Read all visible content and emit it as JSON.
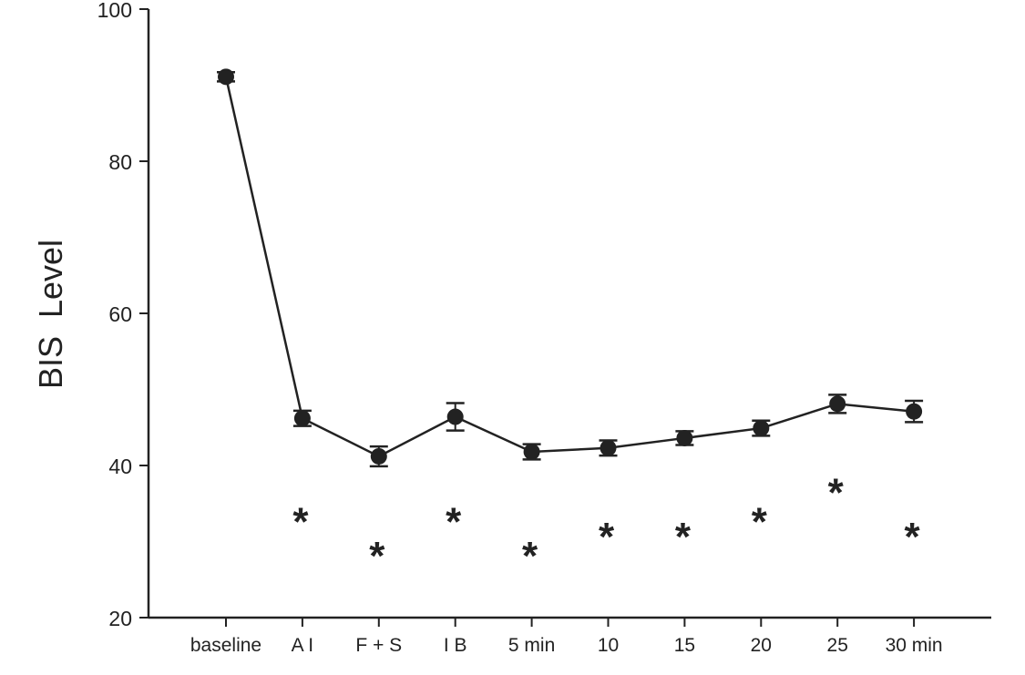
{
  "chart_data": {
    "type": "line",
    "title": "",
    "xlabel": "",
    "ylabel": "BIS  Level",
    "ylim": [
      20,
      100
    ],
    "yticks": [
      "20",
      "40",
      "60",
      "80",
      "100"
    ],
    "grid": false,
    "categories": [
      "baseline",
      "A I",
      "F + S",
      "I B",
      "5 min",
      "10",
      "15",
      "20",
      "25",
      "30 min"
    ],
    "series": [
      {
        "values": [
          91.1,
          46.2,
          41.2,
          46.4,
          41.8,
          42.3,
          43.6,
          44.9,
          48.1,
          47.1
        ],
        "errors": [
          0.6,
          1.0,
          1.3,
          1.8,
          1.0,
          1.0,
          0.9,
          1.0,
          1.2,
          1.4
        ]
      }
    ],
    "annotations": [
      {
        "category": "A I",
        "text": "*",
        "y": 33.5
      },
      {
        "category": "F + S",
        "text": "*",
        "y": 29
      },
      {
        "category": "I B",
        "text": "*",
        "y": 33.5
      },
      {
        "category": "5 min",
        "text": "*",
        "y": 29
      },
      {
        "category": "10",
        "text": "*",
        "y": 31.5
      },
      {
        "category": "15",
        "text": "*",
        "y": 31.5
      },
      {
        "category": "20",
        "text": "*",
        "y": 33.5
      },
      {
        "category": "25",
        "text": "*",
        "y": 37.3
      },
      {
        "category": "30 min",
        "text": "*",
        "y": 31.5
      }
    ],
    "colors": {
      "ink": "#222222"
    }
  }
}
